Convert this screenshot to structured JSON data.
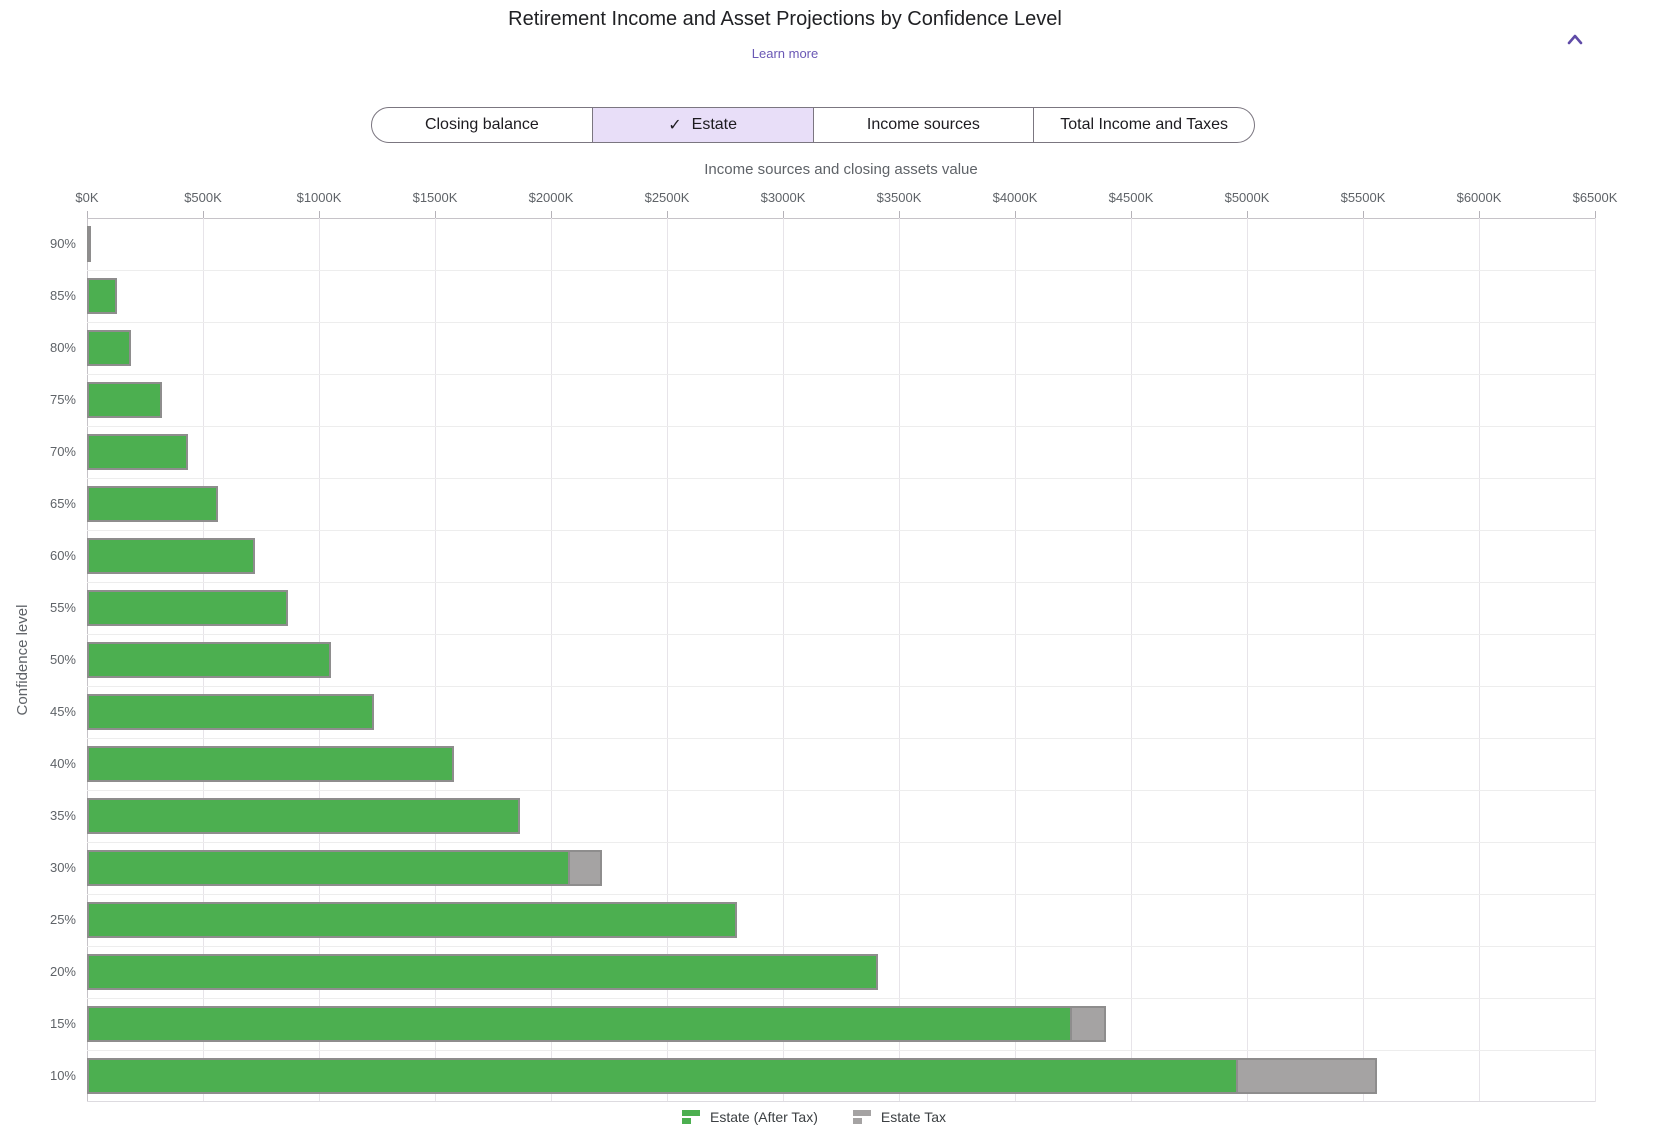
{
  "header": {
    "title": "Retirement Income and Asset Projections by Confidence Level",
    "learn_more_label": "Learn more",
    "collapse_icon": "chevron-up",
    "collapse_icon_color": "#5f4ba7"
  },
  "tab_bar": {
    "check_icon": "✓",
    "tabs": [
      {
        "label": "Closing balance",
        "selected": false
      },
      {
        "label": "Estate",
        "selected": true
      },
      {
        "label": "Income sources",
        "selected": false
      },
      {
        "label": "Total Income and Taxes",
        "selected": false
      }
    ]
  },
  "chart_data": {
    "type": "bar",
    "orientation": "horizontal",
    "stacked": true,
    "xlabel": "Income sources and closing assets value",
    "ylabel": "Confidence level",
    "units": "USD thousands",
    "xlim": [
      0,
      6500
    ],
    "grid": true,
    "legend_position": "bottom",
    "x_tick_values": [
      0,
      500,
      1000,
      1500,
      2000,
      2500,
      3000,
      3500,
      4000,
      4500,
      5000,
      5500,
      6000,
      6500
    ],
    "x_tick_labels": [
      "$0K",
      "$500K",
      "$1000K",
      "$1500K",
      "$2000K",
      "$2500K",
      "$3000K",
      "$3500K",
      "$4000K",
      "$4500K",
      "$5000K",
      "$5500K",
      "$6000K",
      "$6500K"
    ],
    "categories": [
      "90%",
      "85%",
      "80%",
      "75%",
      "70%",
      "65%",
      "60%",
      "55%",
      "50%",
      "45%",
      "40%",
      "35%",
      "30%",
      "25%",
      "20%",
      "15%",
      "10%"
    ],
    "series": [
      {
        "name": "Estate (After Tax)",
        "color": "#4caf50",
        "values": [
          8,
          130,
          190,
          325,
          435,
          565,
          725,
          865,
          1050,
          1235,
          1580,
          1865,
          2080,
          2800,
          3410,
          4245,
          4960
        ]
      },
      {
        "name": "Estate Tax",
        "color": "#a5a3a3",
        "values": [
          0,
          0,
          0,
          0,
          0,
          0,
          0,
          0,
          0,
          0,
          0,
          0,
          150,
          0,
          0,
          155,
          610
        ]
      }
    ]
  }
}
